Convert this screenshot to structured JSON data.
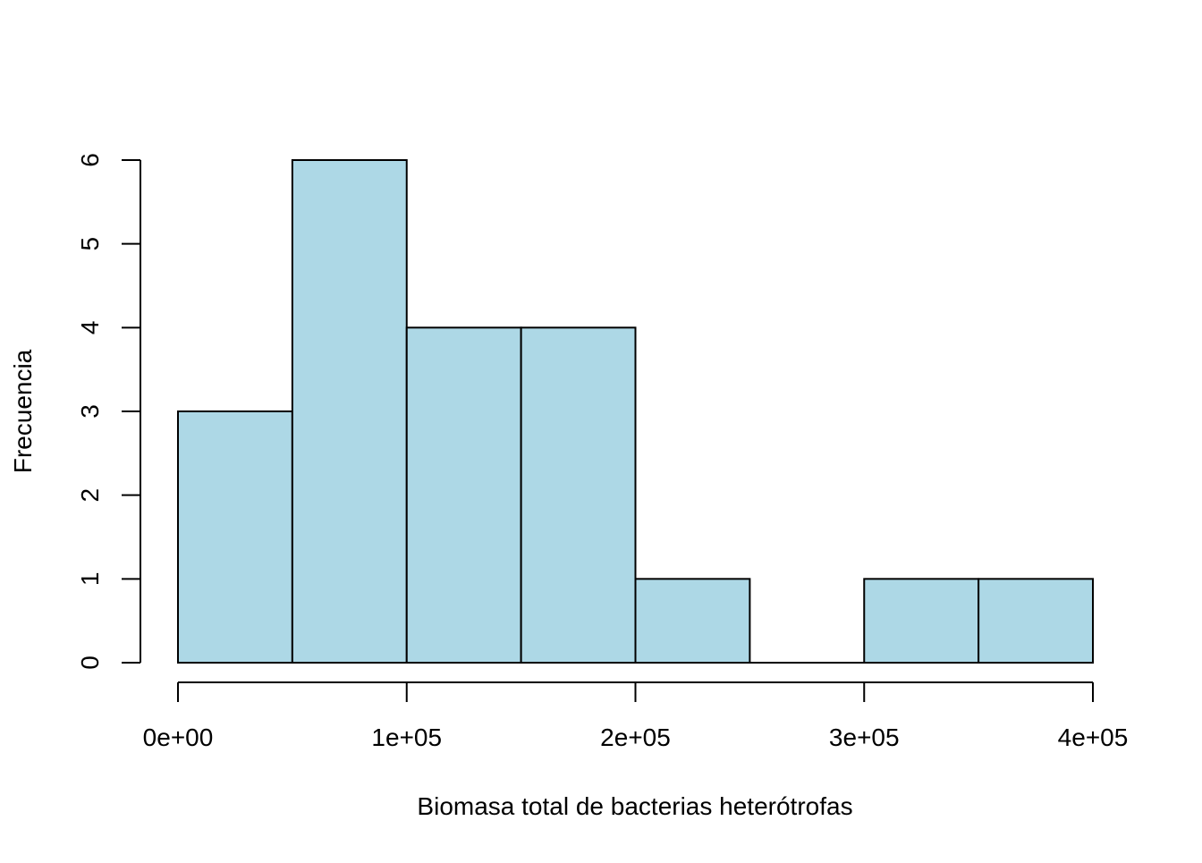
{
  "chart_data": {
    "type": "bar",
    "subtype": "histogram",
    "title": "",
    "xlabel": "Biomasa total de bacterias heterótrofas",
    "ylabel": "Frecuencia",
    "bins": [
      {
        "start": 0,
        "end": 50000,
        "count": 3
      },
      {
        "start": 50000,
        "end": 100000,
        "count": 6
      },
      {
        "start": 100000,
        "end": 150000,
        "count": 4
      },
      {
        "start": 150000,
        "end": 200000,
        "count": 4
      },
      {
        "start": 200000,
        "end": 250000,
        "count": 1
      },
      {
        "start": 250000,
        "end": 300000,
        "count": 0
      },
      {
        "start": 300000,
        "end": 350000,
        "count": 1
      },
      {
        "start": 350000,
        "end": 400000,
        "count": 1
      }
    ],
    "xlim": [
      0,
      400000
    ],
    "ylim": [
      0,
      6
    ],
    "x_ticks": [
      {
        "value": 0,
        "label": "0e+00"
      },
      {
        "value": 100000,
        "label": "1e+05"
      },
      {
        "value": 200000,
        "label": "2e+05"
      },
      {
        "value": 300000,
        "label": "3e+05"
      },
      {
        "value": 400000,
        "label": "4e+05"
      }
    ],
    "y_ticks": [
      {
        "value": 0,
        "label": "0"
      },
      {
        "value": 1,
        "label": "1"
      },
      {
        "value": 2,
        "label": "2"
      },
      {
        "value": 3,
        "label": "3"
      },
      {
        "value": 4,
        "label": "4"
      },
      {
        "value": 5,
        "label": "5"
      },
      {
        "value": 6,
        "label": "6"
      }
    ],
    "bar_color": "#ADD8E6",
    "bar_border_color": "#000000",
    "grid": false,
    "legend": "none"
  }
}
